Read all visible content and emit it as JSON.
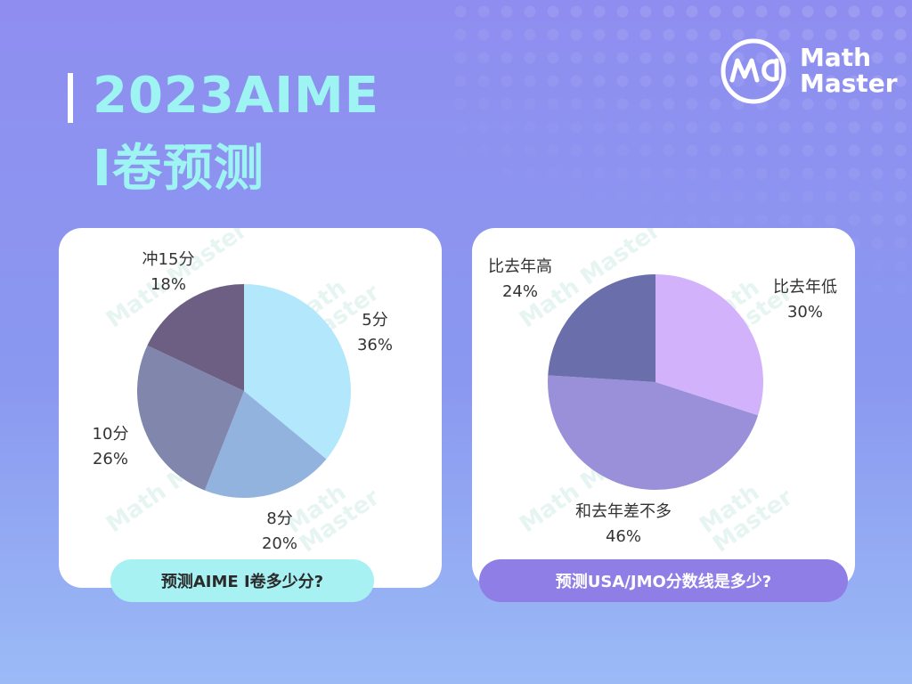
{
  "header": {
    "title_line1": "2023AIME",
    "title_line2": "I卷预测"
  },
  "logo": {
    "line1": "Math",
    "line2": "Master"
  },
  "watermark": "Math Master",
  "chart_data": [
    {
      "type": "pie",
      "title": "",
      "question": "预测AIME I卷多少分?",
      "labels": [
        "5分",
        "8分",
        "10分",
        "冲15分"
      ],
      "values": [
        36,
        20,
        26,
        18
      ],
      "value_labels": [
        "36%",
        "20%",
        "26%",
        "18%"
      ],
      "colors": [
        "#b3e8fc",
        "#93b3df",
        "#8187ac",
        "#6c5f83"
      ]
    },
    {
      "type": "pie",
      "title": "",
      "question": "预测USA/JMO分数线是多少?",
      "labels": [
        "比去年低",
        "和去年差不多",
        "比去年高"
      ],
      "values": [
        30,
        46,
        24
      ],
      "value_labels": [
        "30%",
        "46%",
        "24%"
      ],
      "colors": [
        "#d2b3fb",
        "#9a8fd9",
        "#6a6eab"
      ]
    }
  ]
}
